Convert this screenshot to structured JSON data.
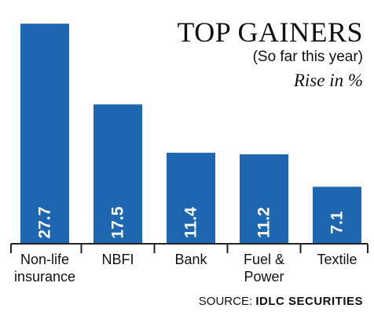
{
  "chart_data": {
    "type": "bar",
    "title": "TOP GAINERS",
    "subtitle": "(So far this year)",
    "ylabel": "Rise in %",
    "categories": [
      "Non-life insurance",
      "NBFI",
      "Bank",
      "Fuel & Power",
      "Textile"
    ],
    "category_lines": [
      [
        "Non-life",
        "insurance"
      ],
      [
        "NBFI"
      ],
      [
        "Bank"
      ],
      [
        "Fuel &",
        "Power"
      ],
      [
        "Textile"
      ]
    ],
    "value_labels": [
      "27.7",
      "17.5",
      "11.4",
      "11.2",
      "7.1"
    ],
    "values": [
      27.7,
      17.5,
      11.4,
      11.2,
      7.1
    ],
    "ylim": [
      0,
      29.5
    ],
    "grid": false,
    "legend": "none",
    "bar_color": "#1f66b1",
    "label_color": "#ffffff",
    "axis_color": "#222222"
  },
  "source": {
    "prefix": "SOURCE:",
    "name": "IDLC SECURITIES"
  }
}
